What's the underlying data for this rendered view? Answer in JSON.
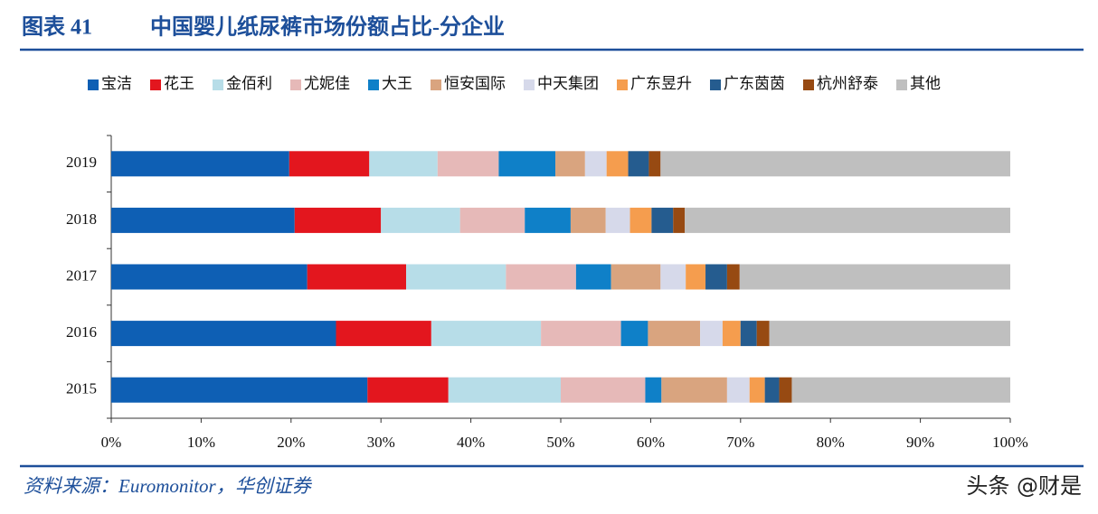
{
  "chart_data": {
    "type": "stacked-bar-horizontal",
    "label": "图表 41",
    "title": "中国婴儿纸尿裤市场份额占比-分企业",
    "source": "资料来源：Euromonitor，华创证券",
    "watermark": "头条 @财是",
    "categories": [
      "2019",
      "2018",
      "2017",
      "2016",
      "2015"
    ],
    "series": [
      {
        "name": "宝洁",
        "color": "#0e5fb4",
        "values": [
          19.8,
          20.4,
          21.8,
          25.0,
          28.5
        ]
      },
      {
        "name": "花王",
        "color": "#e3161e",
        "values": [
          8.9,
          9.6,
          11.0,
          10.6,
          9.0
        ]
      },
      {
        "name": "金佰利",
        "color": "#b7dde8",
        "values": [
          7.6,
          8.8,
          11.1,
          12.2,
          12.5
        ]
      },
      {
        "name": "尤妮佳",
        "color": "#e6b9b8",
        "values": [
          6.8,
          7.2,
          7.8,
          8.9,
          9.4
        ]
      },
      {
        "name": "大王",
        "color": "#0f80c8",
        "values": [
          6.3,
          5.1,
          3.9,
          3.0,
          1.8
        ]
      },
      {
        "name": "恒安国际",
        "color": "#d9a47f",
        "values": [
          3.3,
          3.9,
          5.5,
          5.8,
          7.3
        ]
      },
      {
        "name": "中天集团",
        "color": "#d6d9ea",
        "values": [
          2.4,
          2.7,
          2.8,
          2.5,
          2.5
        ]
      },
      {
        "name": "广东昱升",
        "color": "#f59d4e",
        "values": [
          2.4,
          2.4,
          2.2,
          2.0,
          1.7
        ]
      },
      {
        "name": "广东茵茵",
        "color": "#255c8f",
        "values": [
          2.3,
          2.4,
          2.4,
          1.8,
          1.6
        ]
      },
      {
        "name": "杭州舒泰",
        "color": "#974a12",
        "values": [
          1.3,
          1.3,
          1.4,
          1.4,
          1.4
        ]
      },
      {
        "name": "其他",
        "color": "#bfbfbf",
        "values": [
          38.9,
          36.2,
          30.1,
          26.8,
          24.3
        ]
      }
    ],
    "xlim": [
      0,
      100
    ],
    "xticks": [
      {
        "value": 0,
        "label": "0%"
      },
      {
        "value": 10,
        "label": "10%"
      },
      {
        "value": 20,
        "label": "20%"
      },
      {
        "value": 30,
        "label": "30%"
      },
      {
        "value": 40,
        "label": "40%"
      },
      {
        "value": 50,
        "label": "50%"
      },
      {
        "value": 60,
        "label": "60%"
      },
      {
        "value": 70,
        "label": "70%"
      },
      {
        "value": 80,
        "label": "80%"
      },
      {
        "value": 90,
        "label": "90%"
      },
      {
        "value": 100,
        "label": "100%"
      }
    ],
    "legend": "top"
  }
}
